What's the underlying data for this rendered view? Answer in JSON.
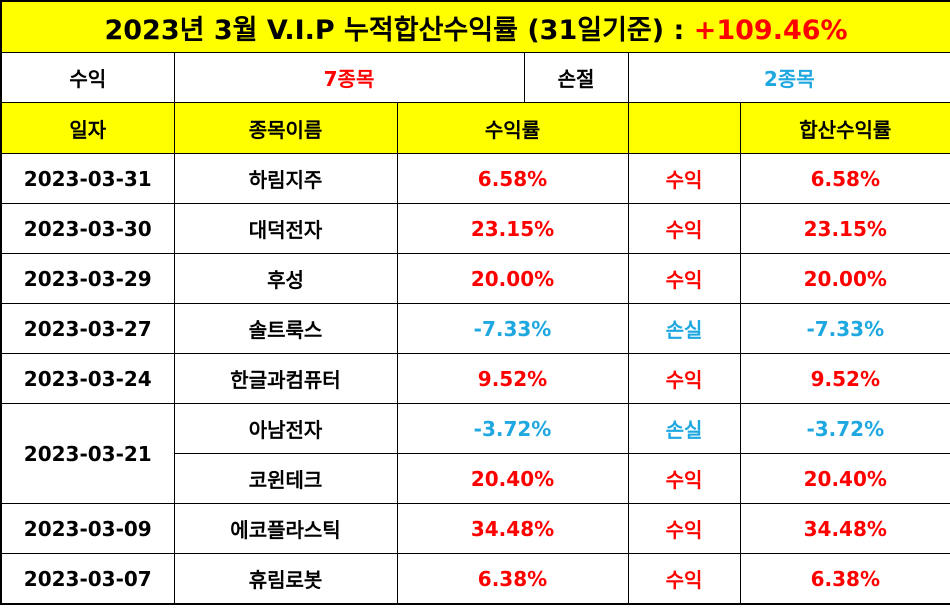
{
  "title": {
    "text": "2023년 3월 V.I.P 누적합산수익률 (31일기준) :",
    "total": "+109.46%"
  },
  "summary": {
    "profit_label": "수익",
    "profit_count": "7종목",
    "loss_label": "손절",
    "loss_count": "2종목"
  },
  "header": {
    "date": "일자",
    "name": "종목이름",
    "rate": "수익률",
    "result": "",
    "cumulative": "합산수익률"
  },
  "rows": [
    {
      "date": "2023-03-31",
      "name": "하림지주",
      "rate": "6.58%",
      "result": "수익",
      "cumulative": "6.58%",
      "type": "profit"
    },
    {
      "date": "2023-03-30",
      "name": "대덕전자",
      "rate": "23.15%",
      "result": "수익",
      "cumulative": "23.15%",
      "type": "profit"
    },
    {
      "date": "2023-03-29",
      "name": "후성",
      "rate": "20.00%",
      "result": "수익",
      "cumulative": "20.00%",
      "type": "profit"
    },
    {
      "date": "2023-03-27",
      "name": "솔트룩스",
      "rate": "-7.33%",
      "result": "손실",
      "cumulative": "-7.33%",
      "type": "loss"
    },
    {
      "date": "2023-03-24",
      "name": "한글과컴퓨터",
      "rate": "9.52%",
      "result": "수익",
      "cumulative": "9.52%",
      "type": "profit"
    },
    {
      "date": "2023-03-21",
      "name": "아남전자",
      "rate": "-3.72%",
      "result": "손실",
      "cumulative": "-3.72%",
      "type": "loss"
    },
    {
      "date": "",
      "name": "코윈테크",
      "rate": "20.40%",
      "result": "수익",
      "cumulative": "20.40%",
      "type": "profit"
    },
    {
      "date": "2023-03-09",
      "name": "에코플라스틱",
      "rate": "34.48%",
      "result": "수익",
      "cumulative": "34.48%",
      "type": "profit"
    },
    {
      "date": "2023-03-07",
      "name": "휴림로봇",
      "rate": "6.38%",
      "result": "수익",
      "cumulative": "6.38%",
      "type": "profit"
    }
  ],
  "colors": {
    "profit": "#ff0000",
    "loss": "#1fa7e0",
    "header_bg": "#ffff00"
  }
}
